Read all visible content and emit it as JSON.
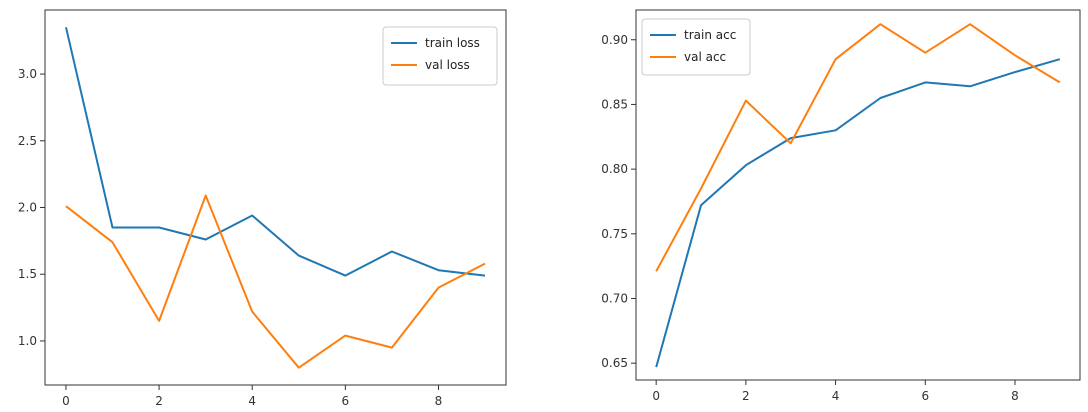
{
  "chart_data": [
    {
      "type": "line",
      "title": "",
      "xlabel": "",
      "ylabel": "",
      "xlim": [
        -0.45,
        9.45
      ],
      "ylim": [
        0.67,
        3.48
      ],
      "xticks": [
        0,
        2,
        4,
        6,
        8
      ],
      "yticks": [
        1.0,
        1.5,
        2.0,
        2.5,
        3.0
      ],
      "ytick_labels": [
        "1.0",
        "1.5",
        "2.0",
        "2.5",
        "3.0"
      ],
      "x": [
        0,
        1,
        2,
        3,
        4,
        5,
        6,
        7,
        8,
        9
      ],
      "legend_position": "top-right",
      "grid": false,
      "series": [
        {
          "name": "train loss",
          "color": "#1f77b4",
          "values": [
            3.35,
            1.85,
            1.85,
            1.76,
            1.94,
            1.64,
            1.49,
            1.67,
            1.53,
            1.49
          ]
        },
        {
          "name": "val loss",
          "color": "#ff7f0e",
          "values": [
            2.01,
            1.74,
            1.15,
            2.09,
            1.22,
            0.8,
            1.04,
            0.95,
            1.4,
            1.58
          ]
        }
      ]
    },
    {
      "type": "line",
      "title": "",
      "xlabel": "",
      "ylabel": "",
      "xlim": [
        -0.45,
        9.45
      ],
      "ylim": [
        0.637,
        0.923
      ],
      "xticks": [
        0,
        2,
        4,
        6,
        8
      ],
      "yticks": [
        0.65,
        0.7,
        0.75,
        0.8,
        0.85,
        0.9
      ],
      "ytick_labels": [
        "0.65",
        "0.70",
        "0.75",
        "0.80",
        "0.85",
        "0.90"
      ],
      "x": [
        0,
        1,
        2,
        3,
        4,
        5,
        6,
        7,
        8,
        9
      ],
      "legend_position": "top-left",
      "grid": false,
      "series": [
        {
          "name": "train acc",
          "color": "#1f77b4",
          "values": [
            0.647,
            0.772,
            0.803,
            0.824,
            0.83,
            0.855,
            0.867,
            0.864,
            0.875,
            0.885
          ]
        },
        {
          "name": "val acc",
          "color": "#ff7f0e",
          "values": [
            0.721,
            0.785,
            0.853,
            0.82,
            0.885,
            0.912,
            0.89,
            0.912,
            0.888,
            0.867
          ]
        }
      ]
    }
  ]
}
